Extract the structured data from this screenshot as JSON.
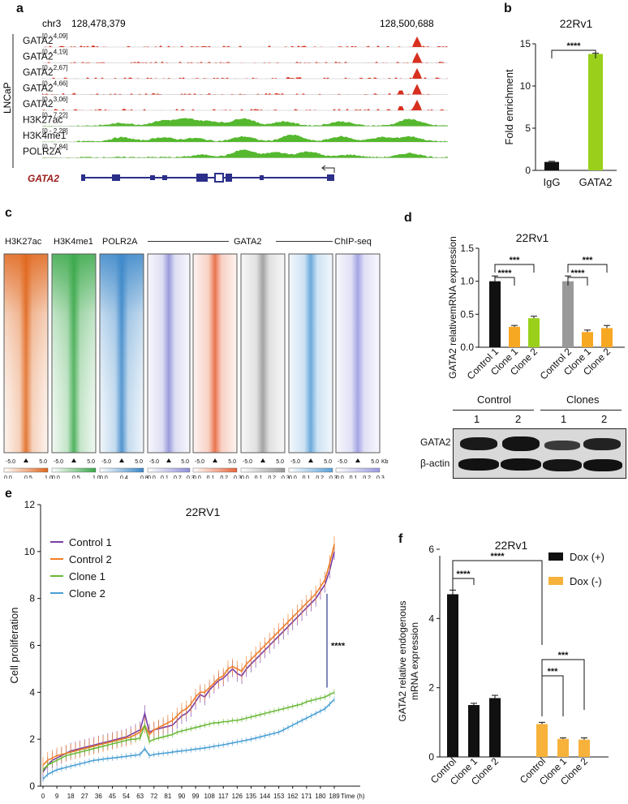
{
  "panel_labels": {
    "a": "a",
    "b": "b",
    "c": "c",
    "d": "d",
    "e": "e",
    "f": "f"
  },
  "panel_a": {
    "chr": "chr3",
    "start": "128,478,379",
    "end": "128,500,688",
    "group_label": "LNCaP",
    "gene_label": "GATA2",
    "tracks": [
      {
        "name": "GATA2",
        "range": "[0 - 4,09]",
        "color": "#d7301f"
      },
      {
        "name": "GATA2",
        "range": "[0 - 4,19]",
        "color": "#d7301f"
      },
      {
        "name": "GATA2",
        "range": "[0 - 2,67]",
        "color": "#d7301f"
      },
      {
        "name": "GATA2",
        "range": "[0 - 4,66]",
        "color": "#d7301f"
      },
      {
        "name": "GATA2",
        "range": "[0 - 3,06]",
        "color": "#d7301f"
      },
      {
        "name": "H3K27ac",
        "range": "[0 - 7,22]",
        "color": "#55b82e"
      },
      {
        "name": "H3K4me1",
        "range": "[0 - 2,28]",
        "color": "#55b82e"
      },
      {
        "name": "POLR2A",
        "range": "[0 - 7,84]",
        "color": "#55b82e"
      }
    ]
  },
  "chart_data": [
    {
      "id": "b",
      "type": "bar",
      "title": "22Rv1",
      "categories": [
        "IgG",
        "GATA2"
      ],
      "values": [
        1.0,
        13.8
      ],
      "colors": [
        "#111111",
        "#9ad01b"
      ],
      "ylabel": "Fold enrichment",
      "ylim": [
        0,
        15
      ],
      "yticks": [
        0,
        5,
        10,
        15
      ],
      "annotations": [
        "****"
      ]
    },
    {
      "id": "d",
      "type": "bar",
      "title": "22Rv1",
      "categories": [
        "Control 1",
        "Clone 1",
        "Clone 2",
        "Control 2",
        "Clone 1",
        "Clone 2"
      ],
      "values": [
        1.0,
        0.31,
        0.44,
        1.0,
        0.23,
        0.29
      ],
      "errors": [
        0.08,
        0.02,
        0.03,
        0.08,
        0.03,
        0.04
      ],
      "colors": [
        "#111111",
        "#f7a823",
        "#9ad01b",
        "#999999",
        "#f7a823",
        "#f7a823"
      ],
      "ylabel": "GATA2 relativemRNA expression",
      "ylim": [
        0,
        1.5
      ],
      "yticks": [
        "0.0",
        "0.5",
        "1.0",
        "1.5"
      ],
      "annotations": [
        "****",
        "***",
        "****",
        "***"
      ]
    },
    {
      "id": "e",
      "type": "line",
      "title": "22RV1",
      "ylabel": "Cell proliferation",
      "xlabel": "Time (h)",
      "ylim": [
        0,
        12
      ],
      "yticks": [
        0,
        2,
        4,
        6,
        8,
        10,
        12
      ],
      "xticks": [
        "0",
        "9",
        "18",
        "27",
        "36",
        "45",
        "54",
        "63",
        "72",
        "81",
        "90",
        "99",
        "108",
        "117",
        "126",
        "135",
        "144",
        "153",
        "162",
        "171",
        "180",
        "189"
      ],
      "annotation": "****",
      "series": [
        {
          "name": "Control 1",
          "color": "#7a3fa8",
          "values": [
            0.6,
            0.9,
            1.1,
            1.2,
            1.3,
            1.4,
            1.5,
            1.55,
            1.6,
            1.65,
            1.7,
            1.75,
            1.8,
            1.85,
            1.9,
            1.95,
            2.0,
            2.05,
            2.1,
            2.2,
            2.3,
            2.4,
            3.1,
            2.3,
            2.4,
            2.45,
            2.5,
            2.55,
            2.6,
            2.8,
            3.0,
            3.1,
            3.3,
            3.6,
            3.9,
            3.8,
            4.1,
            4.3,
            4.5,
            4.6,
            4.8,
            5.0,
            4.8,
            4.7,
            5.0,
            5.2,
            5.4,
            5.6,
            5.8,
            6.0,
            6.2,
            6.4,
            6.6,
            6.8,
            7.0,
            7.2,
            7.4,
            7.6,
            7.8,
            8.0,
            8.3,
            8.6,
            9.2,
            10.0
          ]
        },
        {
          "name": "Control 2",
          "color": "#f07e26",
          "values": [
            0.9,
            1.1,
            1.2,
            1.3,
            1.35,
            1.4,
            1.45,
            1.5,
            1.55,
            1.6,
            1.65,
            1.7,
            1.75,
            1.8,
            1.85,
            1.9,
            1.95,
            2.0,
            2.05,
            2.1,
            2.2,
            2.3,
            2.6,
            2.2,
            2.4,
            2.5,
            2.6,
            2.7,
            2.8,
            3.0,
            3.2,
            3.3,
            3.5,
            3.8,
            4.0,
            4.0,
            4.2,
            4.4,
            4.6,
            4.7,
            5.0,
            5.1,
            5.0,
            4.9,
            5.2,
            5.4,
            5.6,
            5.8,
            6.0,
            6.2,
            6.4,
            6.6,
            6.8,
            7.0,
            7.2,
            7.4,
            7.6,
            7.8,
            8.0,
            8.2,
            8.5,
            8.8,
            9.5,
            10.3
          ]
        },
        {
          "name": "Clone 1",
          "color": "#6bb93a",
          "values": [
            0.7,
            0.9,
            1.0,
            1.1,
            1.2,
            1.3,
            1.35,
            1.4,
            1.45,
            1.5,
            1.55,
            1.6,
            1.65,
            1.7,
            1.75,
            1.8,
            1.85,
            1.9,
            1.95,
            2.0,
            2.0,
            2.05,
            2.6,
            1.9,
            2.0,
            2.05,
            2.1,
            2.15,
            2.2,
            2.3,
            2.35,
            2.4,
            2.45,
            2.5,
            2.55,
            2.6,
            2.65,
            2.7,
            2.7,
            2.75,
            2.75,
            2.8,
            2.8,
            2.85,
            2.9,
            2.95,
            3.0,
            3.05,
            3.1,
            3.15,
            3.2,
            3.25,
            3.3,
            3.35,
            3.4,
            3.45,
            3.5,
            3.6,
            3.65,
            3.7,
            3.75,
            3.8,
            3.9,
            4.0
          ]
        },
        {
          "name": "Clone 2",
          "color": "#4a9fd4",
          "values": [
            0.3,
            0.5,
            0.6,
            0.7,
            0.75,
            0.8,
            0.85,
            0.9,
            0.95,
            1.0,
            1.05,
            1.1,
            1.12,
            1.15,
            1.18,
            1.2,
            1.22,
            1.25,
            1.27,
            1.3,
            1.32,
            1.35,
            1.6,
            1.3,
            1.35,
            1.38,
            1.4,
            1.42,
            1.45,
            1.48,
            1.5,
            1.52,
            1.55,
            1.58,
            1.6,
            1.63,
            1.66,
            1.7,
            1.73,
            1.76,
            1.8,
            1.84,
            1.88,
            1.92,
            1.96,
            2.0,
            2.05,
            2.1,
            2.15,
            2.2,
            2.25,
            2.3,
            2.4,
            2.5,
            2.6,
            2.7,
            2.8,
            2.9,
            3.0,
            3.1,
            3.2,
            3.3,
            3.5,
            3.7
          ]
        }
      ]
    },
    {
      "id": "f",
      "type": "bar",
      "title": "22Rv1",
      "categories": [
        "Control",
        "Clone 1",
        "Clone 2",
        "Control",
        "Clone 1",
        "Clone 2"
      ],
      "values": [
        4.7,
        1.5,
        1.7,
        0.95,
        0.52,
        0.5
      ],
      "errors": [
        0.12,
        0.05,
        0.08,
        0.05,
        0.03,
        0.05
      ],
      "colors": [
        "#111111",
        "#111111",
        "#111111",
        "#f7b23b",
        "#f7b23b",
        "#f7b23b"
      ],
      "ylabel": "GATA2 relative endogenous mRNA expression",
      "ylim": [
        0,
        6
      ],
      "yticks": [
        0,
        2,
        4,
        6
      ],
      "legend": [
        {
          "label": "Dox (+)",
          "color": "#111111"
        },
        {
          "label": "Dox (-)",
          "color": "#f7b23b"
        }
      ],
      "annotations": [
        "****",
        "****",
        "***",
        "***"
      ]
    }
  ],
  "panel_c": {
    "titles": [
      "H3K27ac",
      "H3K4me1",
      "POLR2A",
      "GATA2",
      "ChIP-seq"
    ],
    "heatmaps": [
      {
        "color": "#e0661c",
        "scale": [
          "0.0",
          "0.5",
          "1.0"
        ]
      },
      {
        "color": "#3aa84a",
        "scale": [
          "0.0",
          "0.5",
          "1.0"
        ]
      },
      {
        "color": "#3a86c8",
        "scale": [
          "0.0",
          "0.4",
          "0.8"
        ]
      },
      {
        "color": "#8f8fd9",
        "scale": [
          "0.0",
          "0.1",
          "0.2",
          "0.3"
        ]
      },
      {
        "color": "#e8643a",
        "scale": [
          "0.0",
          "0.1",
          "0.2",
          "0.3"
        ]
      },
      {
        "color": "#999999",
        "scale": [
          "0.0",
          "0.1",
          "0.2",
          "0.3"
        ]
      },
      {
        "color": "#5aa0d8",
        "scale": [
          "0.0",
          "0.1",
          "0.2",
          "0.3"
        ]
      },
      {
        "color": "#9a9ae0",
        "scale": [
          "0.0",
          "0.1",
          "0.2",
          "0.3"
        ]
      }
    ],
    "axis_left": "-5.0",
    "axis_right": "5.0",
    "unit": "Kb"
  },
  "panel_d_blot": {
    "group1": "Control",
    "group2": "Clones",
    "lanes": [
      "1",
      "2",
      "1",
      "2"
    ],
    "row1": "GATA2",
    "row2": "β-actin"
  }
}
